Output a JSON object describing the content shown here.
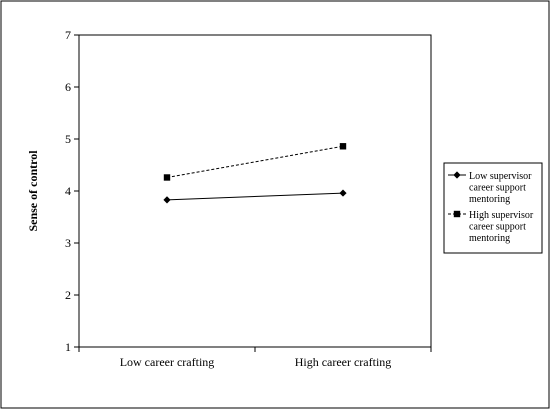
{
  "chart_data": {
    "type": "line",
    "title": "",
    "xlabel": "",
    "ylabel": "Sense of control",
    "categories": [
      "Low career crafting",
      "High career crafting"
    ],
    "ylim": [
      1,
      7
    ],
    "yticks": [
      "1",
      "2",
      "3",
      "4",
      "5",
      "6",
      "7"
    ],
    "grid": false,
    "legend_placement": "right",
    "series": [
      {
        "name": "Low supervisor career support mentoring",
        "legend_lines": [
          "Low supervisor",
          "career support",
          "mentoring"
        ],
        "values": [
          3.83,
          3.96
        ],
        "marker": "diamond",
        "line_style": "solid",
        "color": "#000000"
      },
      {
        "name": "High supervisor career support mentoring",
        "legend_lines": [
          "High supervisor",
          "career support",
          "mentoring"
        ],
        "values": [
          4.26,
          4.86
        ],
        "marker": "square",
        "line_style": "dashed",
        "color": "#000000"
      }
    ]
  }
}
